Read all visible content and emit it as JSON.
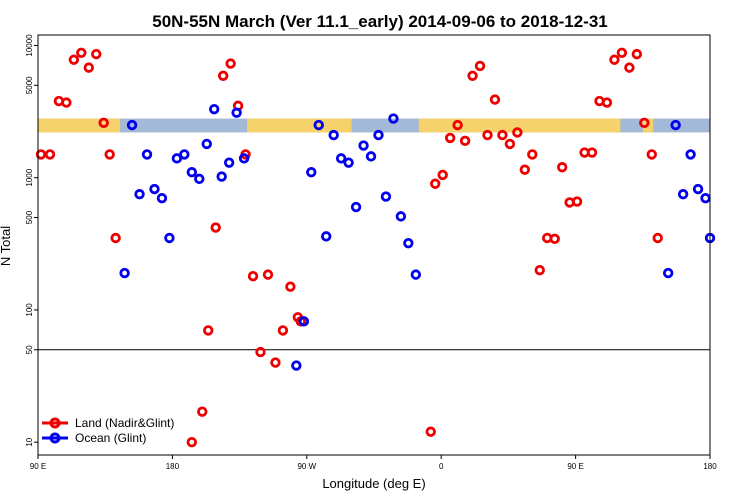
{
  "chart_data": {
    "type": "scatter",
    "title": "50N-55N March (Ver 11.1_early)   2014-09-06 to 2018-12-31",
    "xlabel": "Longitude (deg E)",
    "ylabel": "N Total",
    "x_ticks": [
      {
        "value": 90,
        "label": "90 E"
      },
      {
        "value": 180,
        "label": "180"
      },
      {
        "value": 270,
        "label": "90 W"
      },
      {
        "value": 360,
        "label": "0"
      },
      {
        "value": 450,
        "label": "90 E"
      },
      {
        "value": 540,
        "label": "180"
      }
    ],
    "y_scale": "log",
    "y_ticks": [
      10,
      50,
      100,
      500,
      1000,
      5000,
      10000
    ],
    "xlim": [
      90,
      540
    ],
    "ylim": [
      8,
      12000
    ],
    "reference_line": 50,
    "map_band": {
      "y_low": 2200,
      "y_high": 2800,
      "land_color": "#f5d26b",
      "ocean_color": "#a4b8d8"
    },
    "legend": {
      "placement": "bottom-left"
    },
    "series": [
      {
        "name": "Land (Nadir&Glint)",
        "color": "#ee0000",
        "points": [
          [
            92,
            1500
          ],
          [
            98,
            1500
          ],
          [
            104,
            3800
          ],
          [
            109,
            3700
          ],
          [
            114,
            7800
          ],
          [
            119,
            8800
          ],
          [
            124,
            6800
          ],
          [
            129,
            8600
          ],
          [
            134,
            2600
          ],
          [
            138,
            1500
          ],
          [
            142,
            350
          ],
          [
            200,
            17
          ],
          [
            204,
            70
          ],
          [
            209,
            420
          ],
          [
            214,
            5900
          ],
          [
            219,
            7300
          ],
          [
            224,
            3500
          ],
          [
            229,
            1500
          ],
          [
            234,
            180
          ],
          [
            239,
            48
          ],
          [
            244,
            185
          ],
          [
            249,
            40
          ],
          [
            254,
            70
          ],
          [
            259,
            150
          ],
          [
            264,
            88
          ],
          [
            266,
            82
          ],
          [
            353,
            12
          ],
          [
            356,
            900
          ],
          [
            361,
            1050
          ],
          [
            366,
            2000
          ],
          [
            371,
            2500
          ],
          [
            376,
            1900
          ],
          [
            381,
            5900
          ],
          [
            386,
            7000
          ],
          [
            391,
            2100
          ],
          [
            396,
            3900
          ],
          [
            401,
            2100
          ],
          [
            406,
            1800
          ],
          [
            411,
            2200
          ],
          [
            416,
            1150
          ],
          [
            421,
            1500
          ],
          [
            426,
            200
          ],
          [
            431,
            350
          ],
          [
            436,
            345
          ],
          [
            441,
            1200
          ],
          [
            446,
            650
          ],
          [
            451,
            660
          ],
          [
            456,
            1550
          ],
          [
            461,
            1550
          ],
          [
            466,
            3800
          ],
          [
            471,
            3700
          ],
          [
            476,
            7800
          ],
          [
            481,
            8800
          ],
          [
            486,
            6800
          ],
          [
            491,
            8600
          ],
          [
            496,
            2600
          ],
          [
            501,
            1500
          ],
          [
            505,
            350
          ],
          [
            193,
            10
          ]
        ]
      },
      {
        "name": "Ocean (Glint)",
        "color": "#0000ee",
        "points": [
          [
            148,
            190
          ],
          [
            153,
            2500
          ],
          [
            158,
            750
          ],
          [
            163,
            1500
          ],
          [
            168,
            820
          ],
          [
            173,
            700
          ],
          [
            178,
            350
          ],
          [
            183,
            1400
          ],
          [
            188,
            1500
          ],
          [
            193,
            1100
          ],
          [
            198,
            980
          ],
          [
            203,
            1800
          ],
          [
            208,
            3300
          ],
          [
            213,
            1020
          ],
          [
            218,
            1300
          ],
          [
            223,
            3100
          ],
          [
            228,
            1400
          ],
          [
            263,
            38
          ],
          [
            268,
            82
          ],
          [
            273,
            1100
          ],
          [
            278,
            2500
          ],
          [
            283,
            360
          ],
          [
            288,
            2100
          ],
          [
            293,
            1400
          ],
          [
            298,
            1300
          ],
          [
            303,
            600
          ],
          [
            308,
            1750
          ],
          [
            313,
            1450
          ],
          [
            318,
            2100
          ],
          [
            323,
            720
          ],
          [
            328,
            2800
          ],
          [
            333,
            510
          ],
          [
            338,
            320
          ],
          [
            343,
            185
          ],
          [
            512,
            190
          ],
          [
            517,
            2500
          ],
          [
            522,
            750
          ],
          [
            527,
            1500
          ],
          [
            532,
            820
          ],
          [
            537,
            700
          ],
          [
            540,
            350
          ]
        ]
      }
    ]
  }
}
